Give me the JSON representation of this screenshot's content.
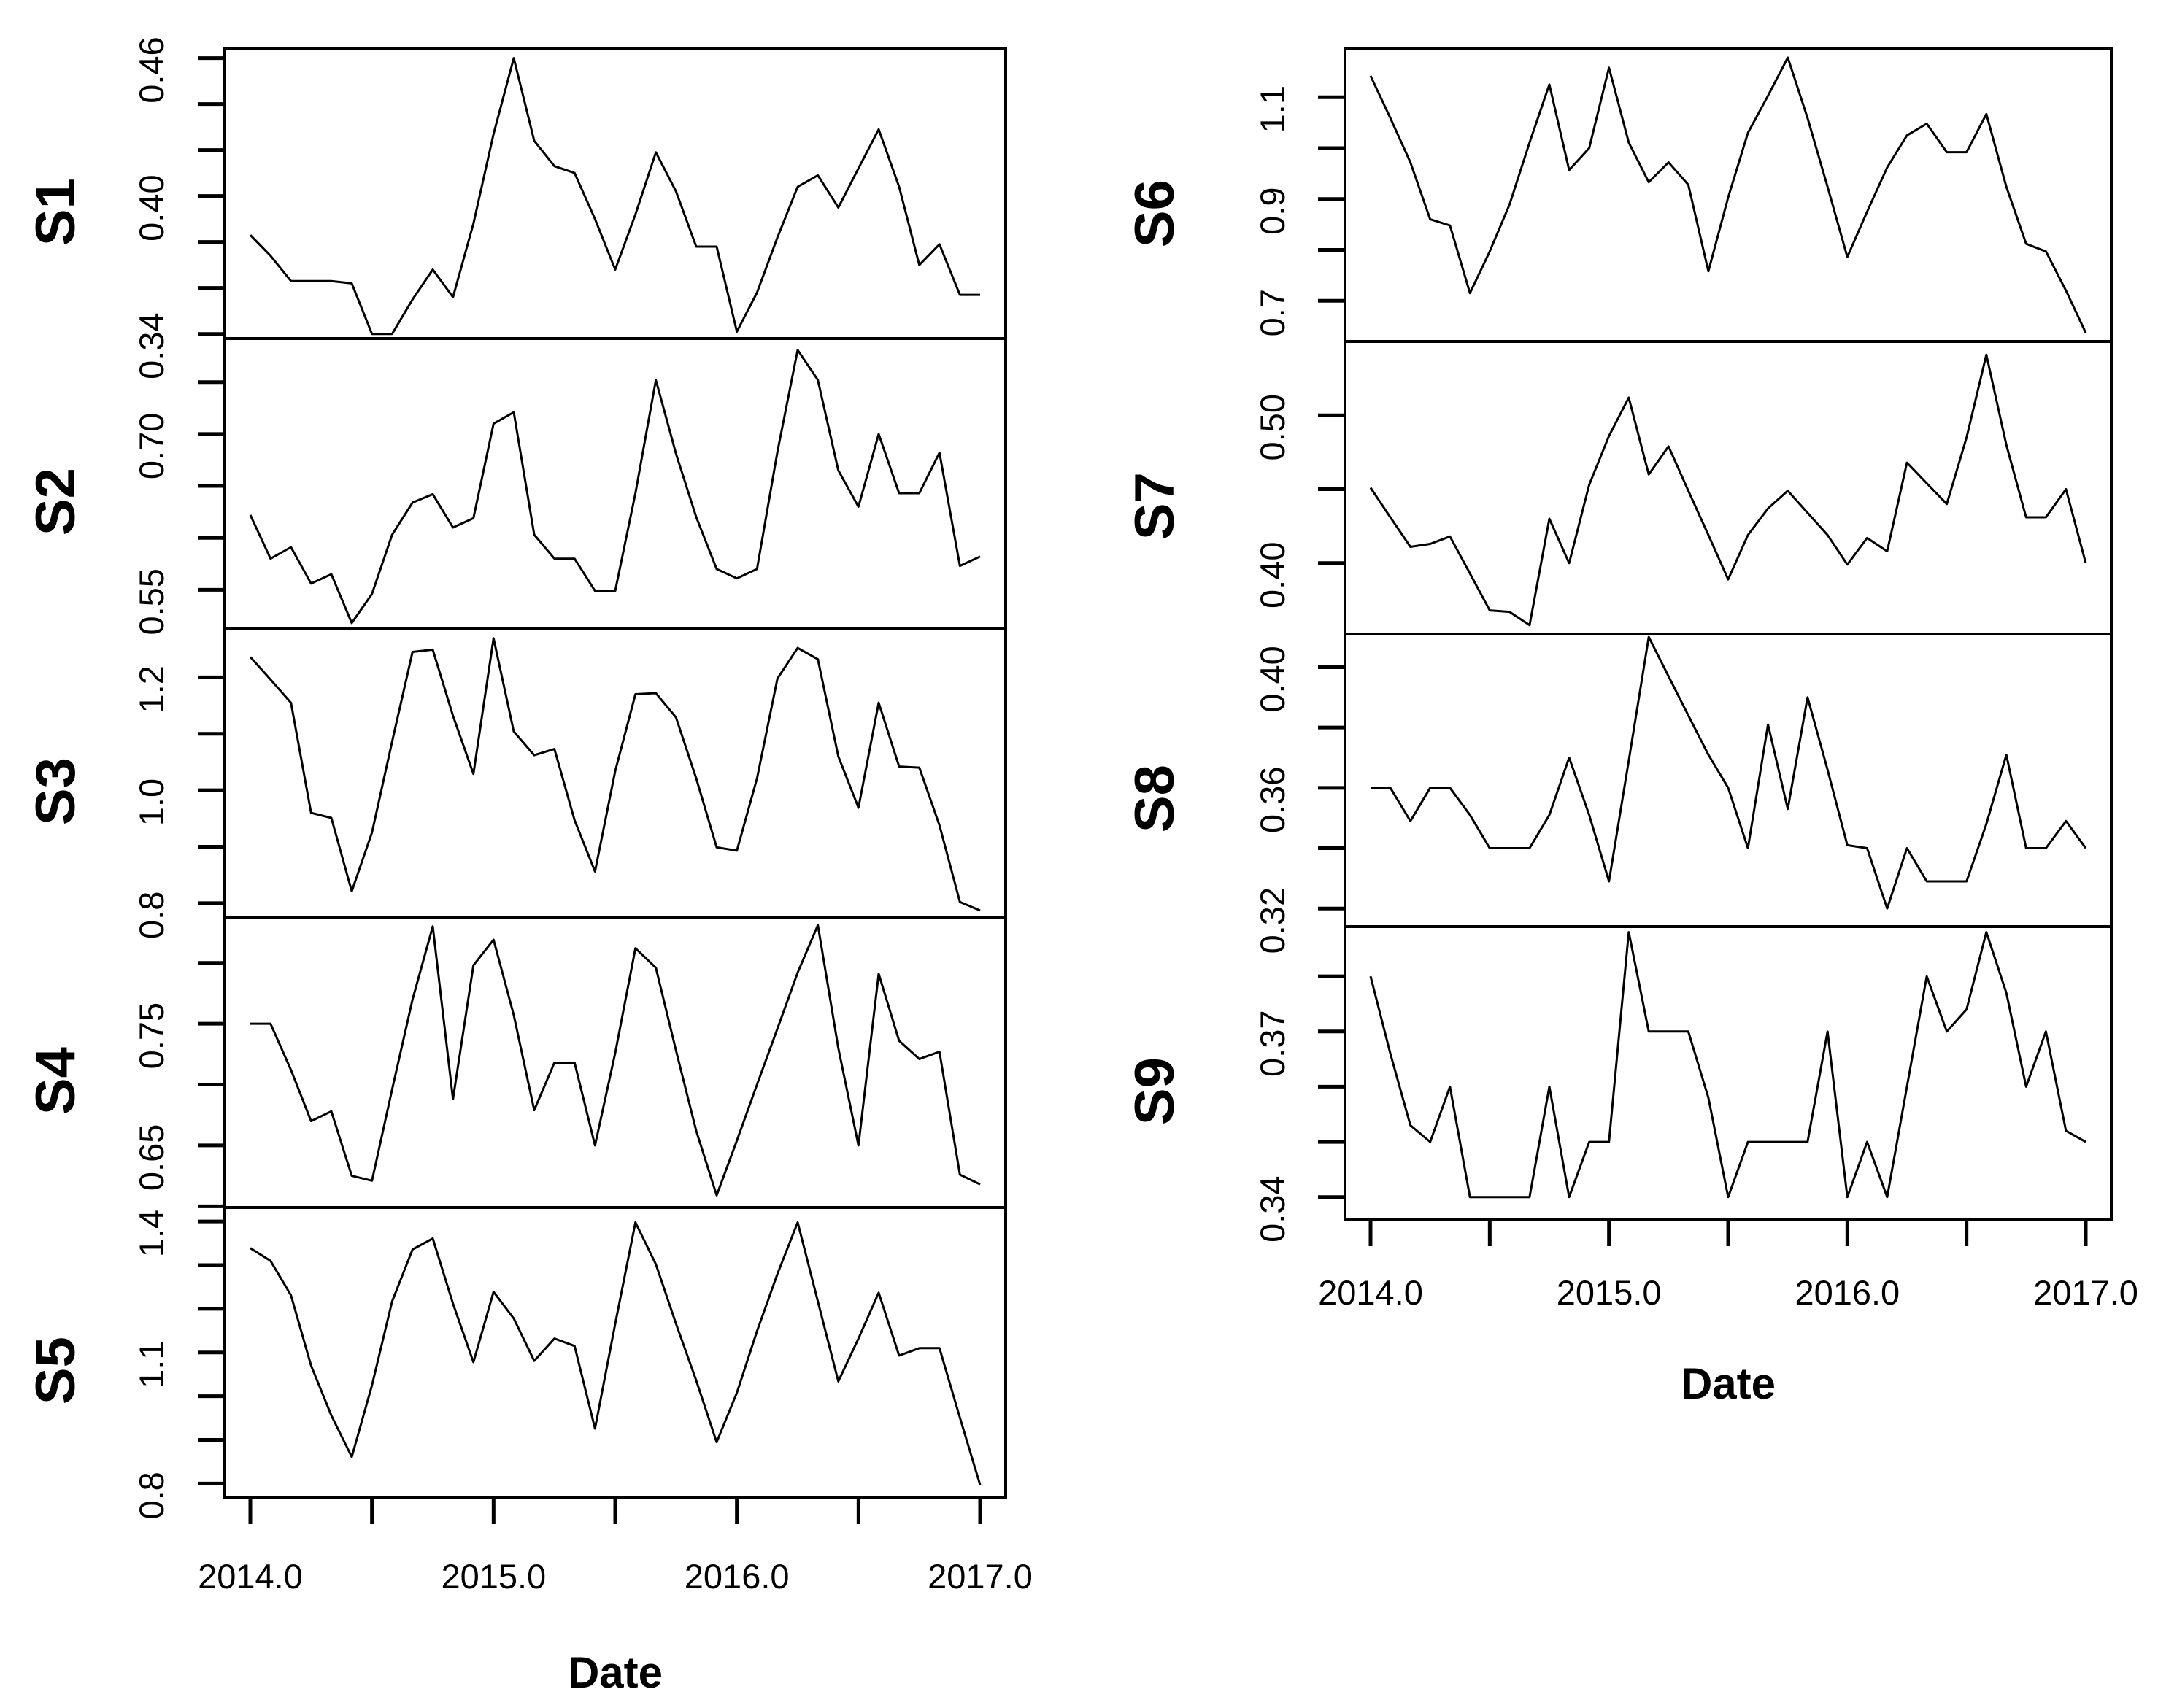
{
  "figure": {
    "background_color": "#ffffff",
    "line_color": "#000000",
    "axis_color": "#000000",
    "text_color": "#000000"
  },
  "chart_data": {
    "type": "line",
    "title": "",
    "description": "Two-column grid of stacked monthly time-series panels (R plot.ts style), S1-S5 left column, S6-S9 right column, each sharing a Date axis from 2014.0 to 2017.0",
    "grid": false,
    "legend": null,
    "xlabel": "Date",
    "xlim": [
      2014.0,
      2017.0
    ],
    "x": [
      2014.0,
      2014.083,
      2014.167,
      2014.25,
      2014.333,
      2014.417,
      2014.5,
      2014.583,
      2014.667,
      2014.75,
      2014.833,
      2014.917,
      2015.0,
      2015.083,
      2015.167,
      2015.25,
      2015.333,
      2015.417,
      2015.5,
      2015.583,
      2015.667,
      2015.75,
      2015.833,
      2015.917,
      2016.0,
      2016.083,
      2016.167,
      2016.25,
      2016.333,
      2016.417,
      2016.5,
      2016.583,
      2016.667,
      2016.75,
      2016.833,
      2016.917,
      2017.0
    ],
    "x_axis": {
      "tick_values": [
        2014.0,
        2014.5,
        2015.0,
        2015.5,
        2016.0,
        2016.5,
        2017.0
      ],
      "tick_labels": [
        "2014.0",
        null,
        "2015.0",
        null,
        "2016.0",
        null,
        "2017.0"
      ]
    },
    "columns": [
      {
        "xlabel": "Date",
        "series_names": [
          "S1",
          "S2",
          "S3",
          "S4",
          "S5"
        ]
      },
      {
        "xlabel": "Date",
        "series_names": [
          "S6",
          "S7",
          "S8",
          "S9"
        ]
      }
    ],
    "series": [
      {
        "name": "S1",
        "ylim": [
          0.338,
          0.464
        ],
        "yticks": [
          0.34,
          0.36,
          0.38,
          0.4,
          0.42,
          0.44,
          0.46
        ],
        "ytick_labels": [
          "0.34",
          null,
          null,
          "0.40",
          null,
          null,
          "0.46"
        ],
        "values": [
          0.383,
          0.374,
          0.363,
          0.363,
          0.363,
          0.362,
          0.34,
          0.34,
          0.355,
          0.368,
          0.356,
          0.388,
          0.427,
          0.46,
          0.424,
          0.413,
          0.41,
          0.39,
          0.368,
          0.392,
          0.419,
          0.402,
          0.378,
          0.378,
          0.341,
          0.358,
          0.382,
          0.404,
          0.409,
          0.395,
          0.412,
          0.429,
          0.404,
          0.37,
          0.379,
          0.357,
          0.357
        ]
      },
      {
        "name": "S2",
        "ylim": [
          0.513,
          0.792
        ],
        "yticks": [
          0.55,
          0.6,
          0.65,
          0.7,
          0.75
        ],
        "ytick_labels": [
          "0.55",
          null,
          null,
          "0.70",
          null
        ],
        "values": [
          0.622,
          0.58,
          0.591,
          0.556,
          0.565,
          0.518,
          0.546,
          0.603,
          0.634,
          0.642,
          0.61,
          0.619,
          0.71,
          0.721,
          0.603,
          0.58,
          0.58,
          0.549,
          0.549,
          0.643,
          0.752,
          0.681,
          0.62,
          0.57,
          0.561,
          0.57,
          0.683,
          0.781,
          0.752,
          0.665,
          0.63,
          0.7,
          0.643,
          0.643,
          0.682,
          0.573,
          0.582
        ]
      },
      {
        "name": "S3",
        "ylim": [
          0.774,
          1.287
        ],
        "yticks": [
          0.8,
          0.9,
          1.0,
          1.1,
          1.2
        ],
        "ytick_labels": [
          "0.8",
          null,
          "1.0",
          null,
          "1.2"
        ],
        "values": [
          1.236,
          1.196,
          1.155,
          0.96,
          0.951,
          0.821,
          0.925,
          1.086,
          1.245,
          1.249,
          1.132,
          1.029,
          1.269,
          1.104,
          1.062,
          1.073,
          0.947,
          0.856,
          1.034,
          1.17,
          1.172,
          1.129,
          1.021,
          0.899,
          0.893,
          1.021,
          1.198,
          1.252,
          1.232,
          1.06,
          0.969,
          1.155,
          1.042,
          1.04,
          0.938,
          0.802,
          0.787
        ]
      },
      {
        "name": "S4",
        "ylim": [
          0.599,
          0.837
        ],
        "yticks": [
          0.6,
          0.65,
          0.7,
          0.75,
          0.8
        ],
        "ytick_labels": [
          null,
          "0.65",
          null,
          "0.75",
          null
        ],
        "values": [
          0.75,
          0.75,
          0.712,
          0.67,
          0.678,
          0.625,
          0.621,
          0.696,
          0.77,
          0.83,
          0.688,
          0.798,
          0.819,
          0.757,
          0.679,
          0.718,
          0.718,
          0.65,
          0.726,
          0.812,
          0.796,
          0.728,
          0.662,
          0.609,
          0.654,
          0.7,
          0.746,
          0.792,
          0.831,
          0.73,
          0.65,
          0.791,
          0.736,
          0.721,
          0.727,
          0.626,
          0.618
        ]
      },
      {
        "name": "S5",
        "ylim": [
          0.769,
          1.432
        ],
        "yticks": [
          0.8,
          0.9,
          1.0,
          1.1,
          1.2,
          1.3,
          1.4
        ],
        "ytick_labels": [
          "0.8",
          null,
          null,
          "1.1",
          null,
          null,
          "1.4"
        ],
        "values": [
          1.339,
          1.31,
          1.231,
          1.07,
          0.956,
          0.861,
          1.025,
          1.217,
          1.336,
          1.361,
          1.212,
          1.078,
          1.239,
          1.178,
          1.081,
          1.132,
          1.115,
          0.926,
          1.166,
          1.398,
          1.302,
          1.166,
          1.036,
          0.895,
          1.008,
          1.149,
          1.28,
          1.398,
          1.217,
          1.034,
          1.132,
          1.237,
          1.093,
          1.11,
          1.11,
          0.951,
          0.797
        ]
      },
      {
        "name": "S6",
        "ylim": [
          0.62,
          1.195
        ],
        "yticks": [
          0.7,
          0.8,
          0.9,
          1.0,
          1.1
        ],
        "ytick_labels": [
          "0.7",
          null,
          "0.9",
          null,
          "1.1"
        ],
        "values": [
          1.142,
          1.059,
          0.972,
          0.86,
          0.848,
          0.715,
          0.797,
          0.889,
          1.011,
          1.125,
          0.957,
          1.0,
          1.158,
          1.011,
          0.933,
          0.972,
          0.928,
          0.758,
          0.903,
          1.03,
          1.103,
          1.178,
          1.059,
          0.924,
          0.786,
          0.875,
          0.962,
          1.025,
          1.048,
          0.992,
          0.992,
          1.067,
          0.924,
          0.812,
          0.797,
          0.72,
          0.637
        ]
      },
      {
        "name": "S7",
        "ylim": [
          0.352,
          0.55
        ],
        "yticks": [
          0.4,
          0.45,
          0.5
        ],
        "ytick_labels": [
          "0.40",
          null,
          "0.50"
        ],
        "values": [
          0.451,
          0.431,
          0.411,
          0.413,
          0.418,
          0.393,
          0.368,
          0.367,
          0.358,
          0.43,
          0.4,
          0.453,
          0.486,
          0.512,
          0.46,
          0.479,
          0.449,
          0.419,
          0.389,
          0.419,
          0.437,
          0.449,
          0.434,
          0.419,
          0.399,
          0.417,
          0.408,
          0.468,
          0.454,
          0.44,
          0.485,
          0.541,
          0.48,
          0.431,
          0.431,
          0.45,
          0.4
        ]
      },
      {
        "name": "S8",
        "ylim": [
          0.314,
          0.411
        ],
        "yticks": [
          0.32,
          0.34,
          0.36,
          0.38,
          0.4
        ],
        "ytick_labels": [
          "0.32",
          null,
          "0.36",
          null,
          "0.40"
        ],
        "values": [
          0.36,
          0.36,
          0.349,
          0.36,
          0.36,
          0.351,
          0.34,
          0.34,
          0.34,
          0.351,
          0.37,
          0.351,
          0.329,
          0.369,
          0.41,
          0.397,
          0.384,
          0.371,
          0.36,
          0.34,
          0.381,
          0.353,
          0.39,
          0.366,
          0.341,
          0.34,
          0.32,
          0.34,
          0.329,
          0.329,
          0.329,
          0.348,
          0.371,
          0.34,
          0.34,
          0.349,
          0.34
        ]
      },
      {
        "name": "S9",
        "ylim": [
          0.336,
          0.389
        ],
        "yticks": [
          0.34,
          0.35,
          0.36,
          0.37,
          0.38
        ],
        "ytick_labels": [
          "0.34",
          null,
          null,
          "0.37",
          null
        ],
        "values": [
          0.38,
          0.366,
          0.353,
          0.35,
          0.36,
          0.34,
          0.34,
          0.34,
          0.34,
          0.36,
          0.34,
          0.35,
          0.35,
          0.388,
          0.37,
          0.37,
          0.37,
          0.358,
          0.34,
          0.35,
          0.35,
          0.35,
          0.35,
          0.37,
          0.34,
          0.35,
          0.34,
          0.36,
          0.38,
          0.37,
          0.374,
          0.388,
          0.377,
          0.36,
          0.37,
          0.352,
          0.35
        ]
      }
    ]
  }
}
